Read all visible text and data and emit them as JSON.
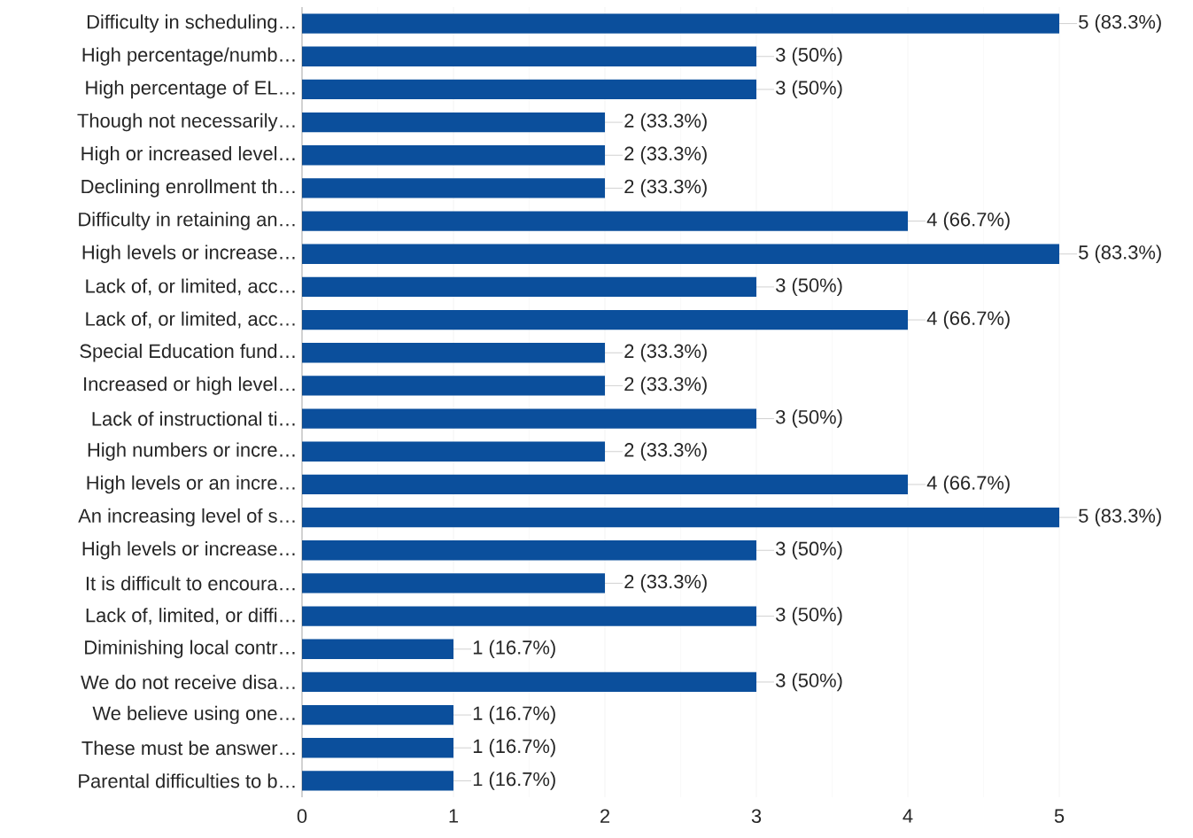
{
  "chart_data": {
    "type": "bar",
    "orientation": "horizontal",
    "categories": [
      "Difficulty in scheduling…",
      "High percentage/numb…",
      "High percentage of EL…",
      "Though not necessarily…",
      "High or increased level…",
      "Declining enrollment th…",
      "Difficulty in retaining an…",
      "High levels or increase…",
      "Lack of, or limited, acc…",
      "Lack of, or limited, acc…",
      "Special Education fund…",
      "Increased or high level…",
      "Lack of instructional ti…",
      "High numbers or incre…",
      "High levels or an incre…",
      "An increasing level of s…",
      "High levels or increase…",
      "It is difficult to encoura…",
      "Lack of, limited, or diffi…",
      "Diminishing local contr…",
      "We do not receive disa…",
      "We believe using one…",
      "These must be answer…",
      "Parental difficulties to b…"
    ],
    "values": [
      5,
      3,
      3,
      2,
      2,
      2,
      4,
      5,
      3,
      4,
      2,
      2,
      3,
      2,
      4,
      5,
      3,
      2,
      3,
      1,
      3,
      1,
      1,
      1
    ],
    "value_labels": [
      "5 (83.3%)",
      "3 (50%)",
      "3 (50%)",
      "2 (33.3%)",
      "2 (33.3%)",
      "2 (33.3%)",
      "4 (66.7%)",
      "5 (83.3%)",
      "3 (50%)",
      "4 (66.7%)",
      "2 (33.3%)",
      "2 (33.3%)",
      "3 (50%)",
      "2 (33.3%)",
      "4 (66.7%)",
      "5 (83.3%)",
      "3 (50%)",
      "2 (33.3%)",
      "3 (50%)",
      "1 (16.7%)",
      "3 (50%)",
      "1 (16.7%)",
      "1 (16.7%)",
      "1 (16.7%)"
    ],
    "color": "#0b4f9c",
    "xlim": [
      0,
      5
    ],
    "xticks": [
      0,
      1,
      2,
      3,
      4,
      5
    ],
    "grid": "x"
  }
}
